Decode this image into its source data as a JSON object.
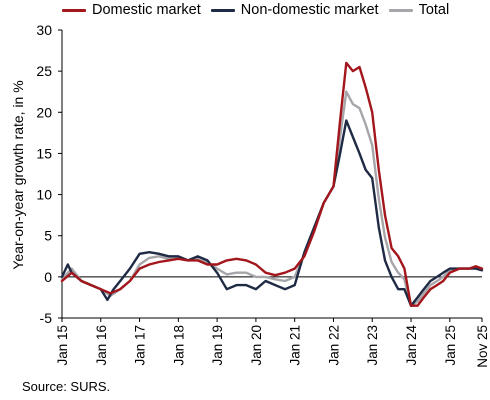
{
  "chart_data": {
    "type": "line",
    "ylabel": "Year-on-year growth rate, in %",
    "ylim": [
      -5,
      30
    ],
    "yticks": [
      "30",
      "25",
      "20",
      "15",
      "10",
      "5",
      "0",
      "-5"
    ],
    "xlim": [
      2015.0,
      2025.83
    ],
    "xticks": [
      {
        "value": 2015.0,
        "label": "Jan 15"
      },
      {
        "value": 2016.0,
        "label": "Jan 16"
      },
      {
        "value": 2017.0,
        "label": "Jan 17"
      },
      {
        "value": 2018.0,
        "label": "Jan 18"
      },
      {
        "value": 2019.0,
        "label": "Jan 19"
      },
      {
        "value": 2020.0,
        "label": "Jan 20"
      },
      {
        "value": 2021.0,
        "label": "Jan 21"
      },
      {
        "value": 2022.0,
        "label": "Jan 22"
      },
      {
        "value": 2023.0,
        "label": "Jan 23"
      },
      {
        "value": 2024.0,
        "label": "Jan 24"
      },
      {
        "value": 2025.0,
        "label": "Jan 25"
      },
      {
        "value": 2025.83,
        "label": "Nov 25"
      }
    ],
    "grid": false,
    "legend_position": "top",
    "series": [
      {
        "name": "Domestic market",
        "color": "#a3161c",
        "x": [
          2015.0,
          2015.25,
          2015.5,
          2015.75,
          2016.0,
          2016.25,
          2016.5,
          2016.75,
          2017.0,
          2017.25,
          2017.5,
          2017.75,
          2018.0,
          2018.25,
          2018.5,
          2018.75,
          2019.0,
          2019.25,
          2019.5,
          2019.75,
          2020.0,
          2020.25,
          2020.5,
          2020.75,
          2021.0,
          2021.25,
          2021.5,
          2021.75,
          2022.0,
          2022.17,
          2022.33,
          2022.5,
          2022.67,
          2022.83,
          2023.0,
          2023.17,
          2023.33,
          2023.5,
          2023.67,
          2023.83,
          2024.0,
          2024.17,
          2024.33,
          2024.5,
          2024.67,
          2024.83,
          2025.0,
          2025.25,
          2025.5,
          2025.67,
          2025.83
        ],
        "values": [
          -0.5,
          0.5,
          -0.5,
          -1.0,
          -1.5,
          -2.0,
          -1.5,
          -0.5,
          1.0,
          1.5,
          1.8,
          2.0,
          2.2,
          2.0,
          2.0,
          1.5,
          1.5,
          2.0,
          2.2,
          2.0,
          1.5,
          0.5,
          0.2,
          0.5,
          1.0,
          2.5,
          5.5,
          9.0,
          11.0,
          19.0,
          26.0,
          25.0,
          25.5,
          23.0,
          20.0,
          13.0,
          7.5,
          3.5,
          2.5,
          1.0,
          -3.5,
          -3.5,
          -2.5,
          -1.5,
          -1.0,
          -0.5,
          0.5,
          1.0,
          1.0,
          1.3,
          1.0
        ]
      },
      {
        "name": "Non-domestic market",
        "color": "#1f2a44",
        "x": [
          2015.0,
          2015.15,
          2015.25,
          2015.5,
          2015.75,
          2016.0,
          2016.17,
          2016.33,
          2016.5,
          2016.75,
          2017.0,
          2017.25,
          2017.5,
          2017.75,
          2018.0,
          2018.25,
          2018.5,
          2018.75,
          2019.0,
          2019.25,
          2019.5,
          2019.75,
          2020.0,
          2020.25,
          2020.5,
          2020.75,
          2021.0,
          2021.25,
          2021.5,
          2021.75,
          2022.0,
          2022.17,
          2022.33,
          2022.5,
          2022.67,
          2022.83,
          2023.0,
          2023.17,
          2023.33,
          2023.5,
          2023.67,
          2023.83,
          2024.0,
          2024.17,
          2024.33,
          2024.5,
          2024.67,
          2024.83,
          2025.0,
          2025.25,
          2025.5,
          2025.67,
          2025.83
        ],
        "values": [
          0.0,
          1.5,
          0.5,
          -0.5,
          -1.0,
          -1.5,
          -2.8,
          -1.5,
          -0.5,
          1.0,
          2.8,
          3.0,
          2.8,
          2.5,
          2.5,
          2.0,
          2.5,
          2.0,
          0.5,
          -1.5,
          -1.0,
          -1.0,
          -1.5,
          -0.5,
          -1.0,
          -1.5,
          -1.0,
          3.0,
          6.0,
          9.0,
          11.0,
          15.0,
          19.0,
          17.0,
          15.0,
          13.0,
          12.0,
          6.0,
          2.0,
          0.0,
          -1.5,
          -1.5,
          -3.5,
          -2.5,
          -1.5,
          -0.5,
          0.0,
          0.5,
          1.0,
          1.0,
          1.0,
          1.0,
          0.8
        ]
      },
      {
        "name": "Total",
        "color": "#a6a6aa",
        "x": [
          2015.0,
          2015.25,
          2015.5,
          2015.75,
          2016.0,
          2016.25,
          2016.5,
          2016.75,
          2017.0,
          2017.25,
          2017.5,
          2017.75,
          2018.0,
          2018.25,
          2018.5,
          2018.75,
          2019.0,
          2019.25,
          2019.5,
          2019.75,
          2020.0,
          2020.25,
          2020.5,
          2020.75,
          2021.0,
          2021.25,
          2021.5,
          2021.75,
          2022.0,
          2022.17,
          2022.33,
          2022.5,
          2022.67,
          2022.83,
          2023.0,
          2023.17,
          2023.33,
          2023.5,
          2023.67,
          2023.83,
          2024.0,
          2024.17,
          2024.33,
          2024.5,
          2024.67,
          2024.83,
          2025.0,
          2025.25,
          2025.5,
          2025.67,
          2025.83
        ],
        "values": [
          -0.3,
          1.0,
          -0.5,
          -1.0,
          -1.5,
          -2.3,
          -1.5,
          -0.5,
          1.5,
          2.3,
          2.5,
          2.2,
          2.3,
          2.0,
          2.2,
          1.8,
          1.0,
          0.3,
          0.5,
          0.5,
          0.0,
          0.0,
          -0.3,
          -0.5,
          0.0,
          2.8,
          5.8,
          9.0,
          11.0,
          17.0,
          22.5,
          21.0,
          20.5,
          18.5,
          16.0,
          9.5,
          4.8,
          1.8,
          0.5,
          -0.3,
          -3.5,
          -3.0,
          -2.0,
          -1.0,
          -0.5,
          0.0,
          0.8,
          1.0,
          1.0,
          1.2,
          1.0
        ]
      }
    ]
  },
  "source": "Source: SURS."
}
